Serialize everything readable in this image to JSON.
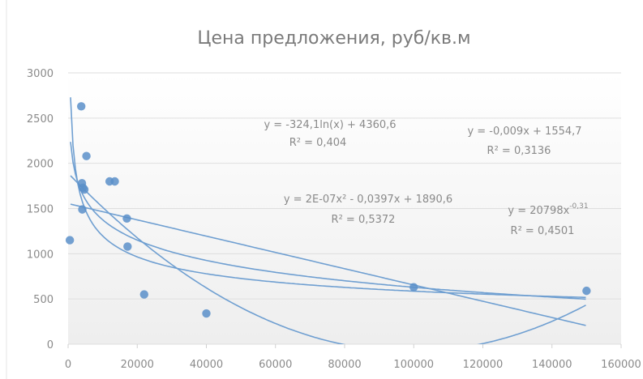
{
  "chart_data": {
    "type": "scatter",
    "title": "Цена предложения, руб/кв.м",
    "xlabel": "",
    "ylabel": "",
    "xlim": [
      0,
      160000
    ],
    "ylim": [
      0,
      3000
    ],
    "x_ticks": [
      "0",
      "20000",
      "40000",
      "60000",
      "80000",
      "100000",
      "120000",
      "140000",
      "160000"
    ],
    "y_ticks": [
      "0",
      "500",
      "1000",
      "1500",
      "2000",
      "2500",
      "3000"
    ],
    "grid": true,
    "legend": "none",
    "colors": {
      "marker": "#5b8fc9",
      "trend": "#6f9fd1",
      "background_top": "#ffffff",
      "background_bottom": "#eeeeee"
    },
    "series": [
      {
        "x": [
          500,
          3800,
          4000,
          4100,
          4300,
          4700,
          5300,
          12000,
          13500,
          17000,
          17200,
          22000,
          40000,
          100000,
          150000
        ],
        "y": [
          1150,
          2630,
          1780,
          1490,
          1730,
          1710,
          2080,
          1800,
          1800,
          1390,
          1080,
          550,
          340,
          630,
          590
        ]
      }
    ],
    "trendlines": [
      {
        "type": "log",
        "equation": "y = -324,1ln(x) + 4360,6",
        "r2": "R² = 0,404",
        "a": -324.1,
        "b": 4360.6
      },
      {
        "type": "linear",
        "equation": "y = -0,009x + 1554,7",
        "r2": "R² = 0,3136",
        "a": -0.009,
        "b": 1554.7
      },
      {
        "type": "poly2",
        "equation": "y = 2E-07x² - 0,0397x + 1890,6",
        "r2": "R² = 0,5372",
        "a": 2e-07,
        "b": -0.0397,
        "c": 1890.6
      },
      {
        "type": "power",
        "equation": "y = 20798x",
        "exponent": "-0,31",
        "r2": "R² = 0,4501",
        "a": 20798,
        "b": -0.31
      }
    ]
  }
}
